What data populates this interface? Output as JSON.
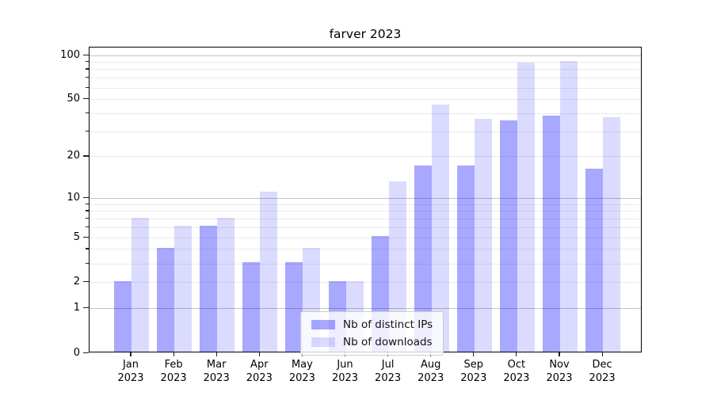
{
  "title": "farver 2023",
  "chart_data": {
    "type": "bar",
    "title": "farver 2023",
    "categories": [
      "Jan 2023",
      "Feb 2023",
      "Mar 2023",
      "Apr 2023",
      "May 2023",
      "Jun 2023",
      "Jul 2023",
      "Aug 2023",
      "Sep 2023",
      "Oct 2023",
      "Nov 2023",
      "Dec 2023"
    ],
    "series": [
      {
        "name": "Nb of distinct IPs",
        "color": "rgba(0,0,255,0.34)",
        "values": [
          2,
          4,
          6,
          3,
          3,
          2,
          5,
          17,
          17,
          35,
          38,
          16
        ]
      },
      {
        "name": "Nb of downloads",
        "color": "rgba(0,0,255,0.14)",
        "values": [
          7,
          6,
          7,
          11,
          4,
          2,
          13,
          45,
          36,
          87,
          90,
          37
        ]
      }
    ],
    "yscale": "log1p",
    "ylim": [
      0,
      113
    ],
    "yticks": [
      0,
      1,
      2,
      5,
      10,
      20,
      50,
      100
    ],
    "major_gridlines": [
      1,
      10,
      100
    ],
    "minor_gridlines": [
      2,
      3,
      4,
      5,
      6,
      7,
      8,
      9,
      20,
      30,
      40,
      50,
      60,
      70,
      80,
      90
    ],
    "grid": true,
    "legend_position": "lower center",
    "colors": {
      "distinct_ips": "rgba(0,0,255,0.34)",
      "downloads": "rgba(0,0,255,0.14)",
      "major_grid": "#c4c4c4",
      "minor_grid": "#ebebeb",
      "spine": "#000000"
    }
  },
  "legend": {
    "items": [
      {
        "label": "Nb of distinct IPs"
      },
      {
        "label": "Nb of downloads"
      }
    ]
  }
}
